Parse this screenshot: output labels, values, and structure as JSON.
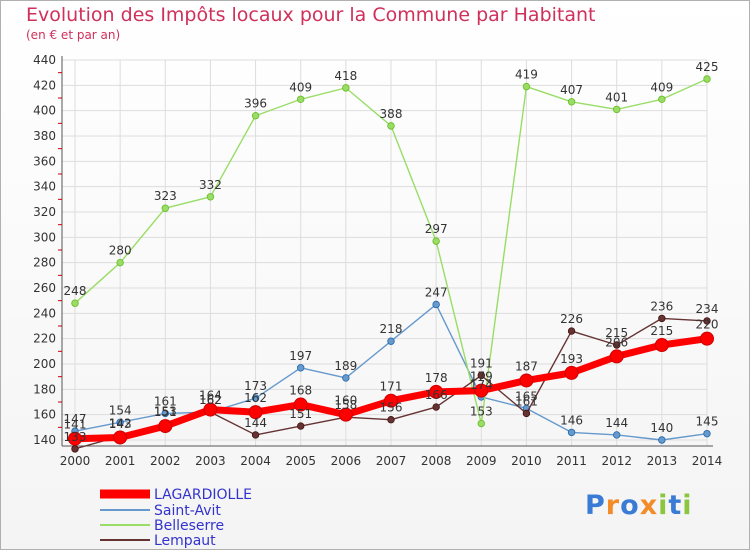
{
  "header": {
    "title": "Evolution des Impôts locaux pour la Commune par Habitant",
    "subtitle": "(en € et par an)"
  },
  "logo": {
    "text": "Proxiti"
  },
  "colors": {
    "title": "#d0305a",
    "lagardiolle": "#ff0000",
    "saint_avit": "#6699cc",
    "belleserre": "#99dd66",
    "lempaut": "#663333",
    "legend_text": "#3333cc"
  },
  "chart_data": {
    "type": "line",
    "title": "Evolution des Impôts locaux pour la Commune par Habitant",
    "subtitle": "(en € et par an)",
    "x": [
      "2000",
      "2001",
      "2002",
      "2003",
      "2004",
      "2005",
      "2006",
      "2007",
      "2008",
      "2009",
      "2010",
      "2011",
      "2012",
      "2013",
      "2014"
    ],
    "ylim": [
      140,
      440
    ],
    "yticks": [
      140,
      160,
      180,
      200,
      220,
      240,
      260,
      280,
      300,
      320,
      340,
      360,
      380,
      400,
      420,
      440
    ],
    "grid": true,
    "legend_position": "bottom-left",
    "series": [
      {
        "name": "LAGARDIOLLE",
        "color": "#ff0000",
        "values": [
          141,
          142,
          151,
          164,
          162,
          168,
          160,
          171,
          178,
          179,
          187,
          193,
          206,
          215,
          220
        ]
      },
      {
        "name": "Saint-Avit",
        "color": "#6699cc",
        "values": [
          147,
          154,
          161,
          162,
          173,
          197,
          189,
          218,
          247,
          174,
          165,
          146,
          144,
          140,
          145
        ]
      },
      {
        "name": "Belleserre",
        "color": "#99dd66",
        "values": [
          248,
          280,
          323,
          332,
          396,
          409,
          418,
          388,
          297,
          153,
          419,
          407,
          401,
          409,
          425
        ]
      },
      {
        "name": "Lempaut",
        "color": "#663333",
        "values": [
          133,
          143,
          153,
          162,
          144,
          151,
          158,
          156,
          166,
          191,
          161,
          226,
          215,
          236,
          234
        ]
      }
    ]
  }
}
